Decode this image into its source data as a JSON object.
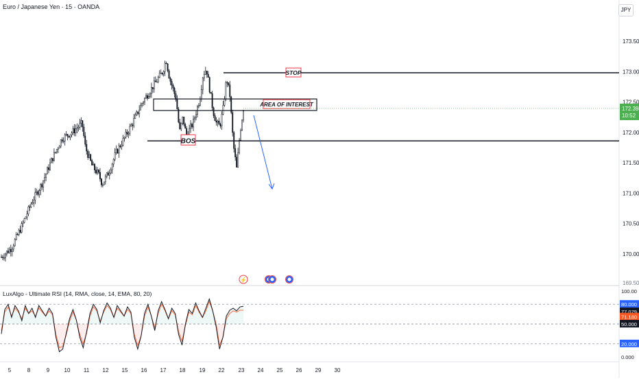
{
  "header": {
    "symbol_title": "Euro / Japanese Yen · 15 · OANDA",
    "currency": "JPY"
  },
  "indicator": {
    "title": "LuxAlgo - Ultimate RSI (14, RMA, close, 14, EMA, 80, 20)"
  },
  "annotations": {
    "stop": "STOP",
    "area": "AREA OF INTEREST",
    "bos": "BOS"
  },
  "price_badge": {
    "price": "172.394",
    "countdown": "10:52"
  },
  "rsi_badges": [
    "80.000",
    "77.079",
    "71.180",
    "50.000",
    "20.000"
  ],
  "colors": {
    "bull": "#26a69a",
    "bear": "#131722",
    "badge_price": "#4caf50",
    "rsi_line": "#ff7043",
    "rsi_fill_top": "#26a69a",
    "rsi_fill_bottom": "#ef5350",
    "arrow": "#2962ff",
    "level": "#131722",
    "box_red": "#f23645"
  },
  "chart_data": [
    {
      "type": "candlestick",
      "title": "Euro / Japanese Yen · 15 · OANDA",
      "x_tick_labels": [
        "5",
        "8",
        "9",
        "10",
        "11",
        "12",
        "15",
        "16",
        "17",
        "18",
        "19",
        "22",
        "23",
        "24",
        "25",
        "26",
        "29",
        "30"
      ],
      "y_tick_labels": [
        "173.500",
        "173.000",
        "172.500",
        "172.000",
        "171.500",
        "171.000",
        "170.500",
        "170.000",
        "169.500"
      ],
      "ylim": [
        169.45,
        174.0
      ],
      "levels": [
        {
          "label": "STOP",
          "value": 172.98
        },
        {
          "label": "AREA OF INTEREST",
          "low": 172.36,
          "high": 172.55
        },
        {
          "label": "BOS",
          "value": 171.86
        }
      ],
      "last_price": 172.394,
      "projection": {
        "from": 172.35,
        "to": 171.07,
        "direction": "down"
      },
      "price_path": [
        [
          0,
          169.95
        ],
        [
          3,
          170.1
        ],
        [
          6,
          170.45
        ],
        [
          9,
          170.85
        ],
        [
          12,
          171.15
        ],
        [
          15,
          171.55
        ],
        [
          18,
          171.9
        ],
        [
          21,
          172.0
        ],
        [
          24,
          172.15
        ],
        [
          25,
          171.75
        ],
        [
          27,
          171.45
        ],
        [
          29,
          171.3
        ],
        [
          30,
          171.15
        ],
        [
          32,
          171.35
        ],
        [
          34,
          171.65
        ],
        [
          36,
          171.85
        ],
        [
          39,
          172.15
        ],
        [
          42,
          172.5
        ],
        [
          45,
          172.75
        ],
        [
          48,
          173.0
        ],
        [
          49,
          173.2
        ],
        [
          50,
          172.9
        ],
        [
          52,
          172.55
        ],
        [
          53,
          172.0
        ],
        [
          54,
          172.25
        ],
        [
          55,
          171.95
        ],
        [
          57,
          172.15
        ],
        [
          59,
          172.55
        ],
        [
          60,
          172.95
        ],
        [
          61,
          173.05
        ],
        [
          62,
          172.7
        ],
        [
          63,
          172.35
        ],
        [
          64,
          172.15
        ],
        [
          65,
          172.1
        ],
        [
          66,
          172.4
        ],
        [
          67,
          172.9
        ],
        [
          68,
          172.6
        ],
        [
          69,
          171.8
        ],
        [
          70,
          171.4
        ],
        [
          71,
          172.0
        ],
        [
          72,
          172.39
        ]
      ]
    },
    {
      "type": "line",
      "title": "LuxAlgo - Ultimate RSI (14, RMA, close, 14, EMA, 80, 20)",
      "y_tick_labels": [
        "100.00",
        "80.000",
        "50.000",
        "20.000",
        "0.000"
      ],
      "ylim": [
        0,
        100
      ],
      "bands": [
        80,
        50,
        20
      ],
      "series": [
        {
          "values": [
            35,
            72,
            80,
            60,
            78,
            70,
            55,
            78,
            66,
            74,
            60,
            78,
            70,
            62,
            74,
            66,
            30,
            8,
            12,
            35,
            58,
            72,
            56,
            30,
            14,
            38,
            66,
            80,
            72,
            52,
            70,
            82,
            74,
            60,
            78,
            70,
            62,
            76,
            68,
            30,
            12,
            32,
            66,
            80,
            62,
            40,
            70,
            84,
            72,
            58,
            74,
            66,
            34,
            18,
            50,
            72,
            66,
            82,
            70,
            60,
            74,
            88,
            70,
            46,
            12,
            30,
            62,
            71,
            74,
            70,
            76,
            77
          ]
        },
        {
          "values": [
            40,
            68,
            76,
            62,
            74,
            68,
            58,
            74,
            66,
            70,
            62,
            74,
            68,
            62,
            70,
            64,
            34,
            14,
            16,
            33,
            54,
            68,
            56,
            34,
            20,
            36,
            62,
            76,
            70,
            54,
            68,
            78,
            72,
            60,
            74,
            68,
            62,
            72,
            66,
            34,
            18,
            32,
            62,
            76,
            62,
            44,
            66,
            80,
            70,
            58,
            70,
            64,
            38,
            24,
            48,
            68,
            64,
            78,
            68,
            60,
            70,
            84,
            70,
            50,
            18,
            30,
            58,
            66,
            70,
            68,
            71,
            71
          ]
        }
      ]
    }
  ]
}
